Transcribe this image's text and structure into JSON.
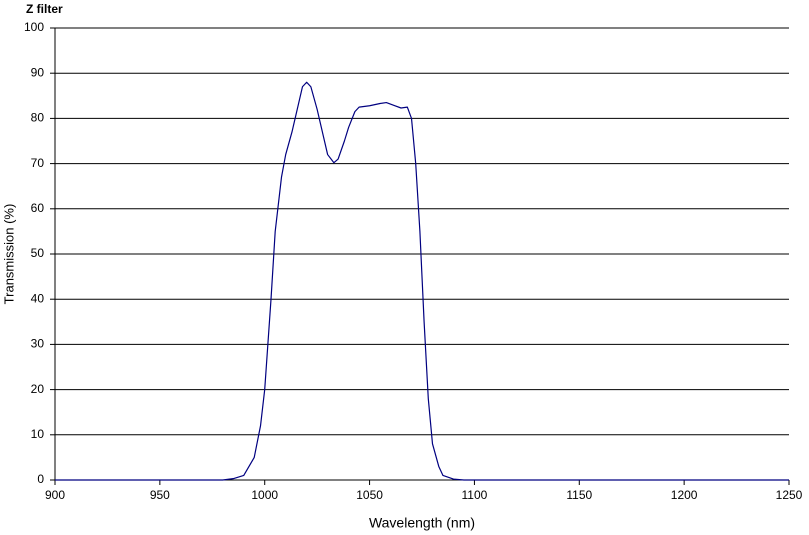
{
  "chart_data": {
    "type": "line",
    "title": "Z filter",
    "x_label": "Wavelength (nm)",
    "y_label": "Transmission (%)",
    "x": [
      900,
      980,
      985,
      990,
      995,
      998,
      1000,
      1003,
      1005,
      1008,
      1010,
      1013,
      1016,
      1018,
      1020,
      1022,
      1025,
      1028,
      1030,
      1033,
      1035,
      1038,
      1040,
      1043,
      1045,
      1050,
      1055,
      1058,
      1062,
      1065,
      1068,
      1070,
      1072,
      1074,
      1075,
      1076,
      1078,
      1080,
      1083,
      1085,
      1090,
      1095,
      1250
    ],
    "series": [
      {
        "color": "#000080",
        "values": [
          0,
          0,
          0.3,
          1,
          5,
          12,
          20,
          40,
          55,
          67,
          72,
          77,
          83,
          87,
          88,
          87,
          82,
          76,
          72,
          70.2,
          71,
          75,
          78,
          81.5,
          82.5,
          82.8,
          83.3,
          83.5,
          82.8,
          82.3,
          82.5,
          80,
          70,
          55,
          45,
          35,
          18,
          8,
          3,
          1,
          0.2,
          0,
          0
        ]
      }
    ],
    "xlim": [
      900,
      1250
    ],
    "xticks": [
      900,
      950,
      1000,
      1050,
      1100,
      1150,
      1200,
      1250
    ],
    "ylim": [
      0,
      100
    ],
    "yticks": [
      0,
      10,
      20,
      30,
      40,
      50,
      60,
      70,
      80,
      90,
      100
    ],
    "grid": true
  }
}
